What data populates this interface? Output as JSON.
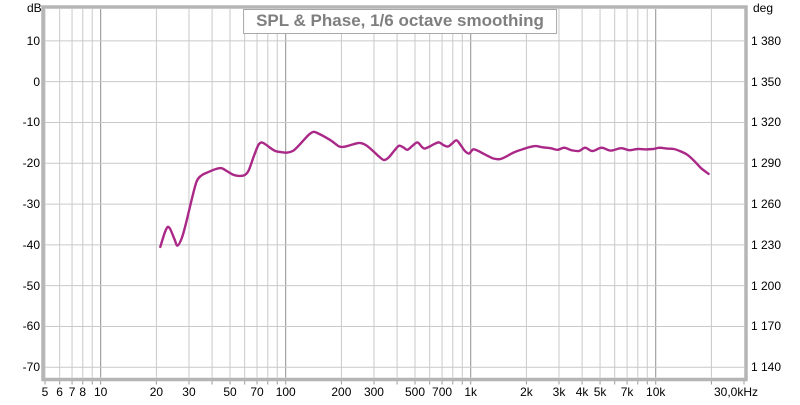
{
  "chart_data": {
    "type": "line",
    "title": "SPL & Phase, 1/6 octave smoothing",
    "left_axis": {
      "unit": "dB",
      "ticks": [
        10,
        0,
        -10,
        -20,
        -30,
        -40,
        -50,
        -60,
        -70
      ],
      "ylim": [
        -72.5,
        17.8
      ]
    },
    "right_axis": {
      "unit": "deg",
      "tick_labels": [
        "1 380",
        "1 350",
        "1 320",
        "1 290",
        "1 260",
        "1 230",
        "1 200",
        "1 170",
        "1 140"
      ]
    },
    "x_axis": {
      "scale": "log",
      "xlim": [
        5,
        30000
      ],
      "gridline_freqs": [
        5,
        6,
        7,
        8,
        9,
        10,
        20,
        30,
        40,
        50,
        60,
        70,
        80,
        90,
        100,
        200,
        300,
        400,
        500,
        600,
        700,
        800,
        900,
        1000,
        2000,
        3000,
        4000,
        5000,
        6000,
        7000,
        8000,
        9000,
        10000,
        20000
      ],
      "decade_freqs": [
        10,
        100,
        1000,
        10000
      ],
      "tick_labels": [
        {
          "f": 5,
          "label": "5"
        },
        {
          "f": 6,
          "label": "6"
        },
        {
          "f": 7,
          "label": "7"
        },
        {
          "f": 8,
          "label": "8"
        },
        {
          "f": 10,
          "label": "10"
        },
        {
          "f": 20,
          "label": "20"
        },
        {
          "f": 30,
          "label": "30"
        },
        {
          "f": 50,
          "label": "50"
        },
        {
          "f": 70,
          "label": "70"
        },
        {
          "f": 100,
          "label": "100"
        },
        {
          "f": 200,
          "label": "200"
        },
        {
          "f": 300,
          "label": "300"
        },
        {
          "f": 500,
          "label": "500"
        },
        {
          "f": 700,
          "label": "700"
        },
        {
          "f": 1000,
          "label": "1k"
        },
        {
          "f": 2000,
          "label": "2k"
        },
        {
          "f": 3000,
          "label": "3k"
        },
        {
          "f": 4000,
          "label": "4k"
        },
        {
          "f": 5000,
          "label": "5k"
        },
        {
          "f": 7000,
          "label": "7k"
        },
        {
          "f": 10000,
          "label": "10k"
        },
        {
          "f": 30000,
          "label": "30,0kHz"
        }
      ]
    },
    "grid": true,
    "legend": "none",
    "colors": {
      "background": "#ffffff",
      "grid": "#c9c9c9",
      "grid_decade": "#8f8f8f",
      "border": "#b5b5b5",
      "title": "#7f7f7f",
      "text": "#000000",
      "trace": "#AA2887"
    },
    "series": [
      {
        "name": "SPL",
        "color": "#AA2887",
        "points": [
          [
            21,
            -40.5
          ],
          [
            22.5,
            -36.3
          ],
          [
            23.5,
            -35.8
          ],
          [
            25,
            -38.5
          ],
          [
            26,
            -40.2
          ],
          [
            27.5,
            -38.2
          ],
          [
            29,
            -34.5
          ],
          [
            31,
            -29
          ],
          [
            33,
            -24.5
          ],
          [
            35,
            -23
          ],
          [
            38,
            -22.2
          ],
          [
            42,
            -21.4
          ],
          [
            45,
            -21.2
          ],
          [
            48,
            -21.9
          ],
          [
            52,
            -22.8
          ],
          [
            56,
            -23.1
          ],
          [
            60,
            -22.9
          ],
          [
            63,
            -21.8
          ],
          [
            67,
            -18.5
          ],
          [
            71,
            -15.6
          ],
          [
            74,
            -14.9
          ],
          [
            78,
            -15.4
          ],
          [
            83,
            -16.3
          ],
          [
            88,
            -17
          ],
          [
            95,
            -17.3
          ],
          [
            102,
            -17.4
          ],
          [
            110,
            -16.9
          ],
          [
            118,
            -15.6
          ],
          [
            127,
            -14
          ],
          [
            135,
            -12.8
          ],
          [
            142,
            -12.3
          ],
          [
            150,
            -12.7
          ],
          [
            162,
            -13.5
          ],
          [
            178,
            -14.6
          ],
          [
            195,
            -15.9
          ],
          [
            210,
            -15.9
          ],
          [
            230,
            -15.4
          ],
          [
            250,
            -15
          ],
          [
            270,
            -15.5
          ],
          [
            295,
            -16.9
          ],
          [
            320,
            -18.4
          ],
          [
            340,
            -19.2
          ],
          [
            360,
            -18.6
          ],
          [
            385,
            -17
          ],
          [
            410,
            -15.7
          ],
          [
            435,
            -16.2
          ],
          [
            455,
            -16.7
          ],
          [
            485,
            -15.7
          ],
          [
            515,
            -14.9
          ],
          [
            545,
            -16
          ],
          [
            565,
            -16.4
          ],
          [
            600,
            -15.9
          ],
          [
            640,
            -15.2
          ],
          [
            675,
            -14.9
          ],
          [
            710,
            -15.5
          ],
          [
            755,
            -15.9
          ],
          [
            800,
            -15
          ],
          [
            840,
            -14.4
          ],
          [
            890,
            -15.8
          ],
          [
            930,
            -17
          ],
          [
            980,
            -17.6
          ],
          [
            1030,
            -16.6
          ],
          [
            1100,
            -17
          ],
          [
            1200,
            -17.9
          ],
          [
            1320,
            -18.8
          ],
          [
            1430,
            -19
          ],
          [
            1550,
            -18.4
          ],
          [
            1700,
            -17.4
          ],
          [
            1900,
            -16.6
          ],
          [
            2100,
            -16
          ],
          [
            2250,
            -15.8
          ],
          [
            2450,
            -16.1
          ],
          [
            2700,
            -16.3
          ],
          [
            2950,
            -16.7
          ],
          [
            3200,
            -16.2
          ],
          [
            3500,
            -16.8
          ],
          [
            3850,
            -17
          ],
          [
            4150,
            -16.2
          ],
          [
            4550,
            -17
          ],
          [
            5100,
            -16.2
          ],
          [
            5700,
            -16.9
          ],
          [
            6500,
            -16.3
          ],
          [
            7200,
            -16.8
          ],
          [
            8000,
            -16.5
          ],
          [
            8800,
            -16.6
          ],
          [
            9700,
            -16.5
          ],
          [
            10500,
            -16.2
          ],
          [
            11500,
            -16.4
          ],
          [
            12500,
            -16.5
          ],
          [
            13500,
            -17
          ],
          [
            14800,
            -17.9
          ],
          [
            16200,
            -19.5
          ],
          [
            17600,
            -21.2
          ],
          [
            19300,
            -22.6
          ]
        ]
      }
    ]
  }
}
